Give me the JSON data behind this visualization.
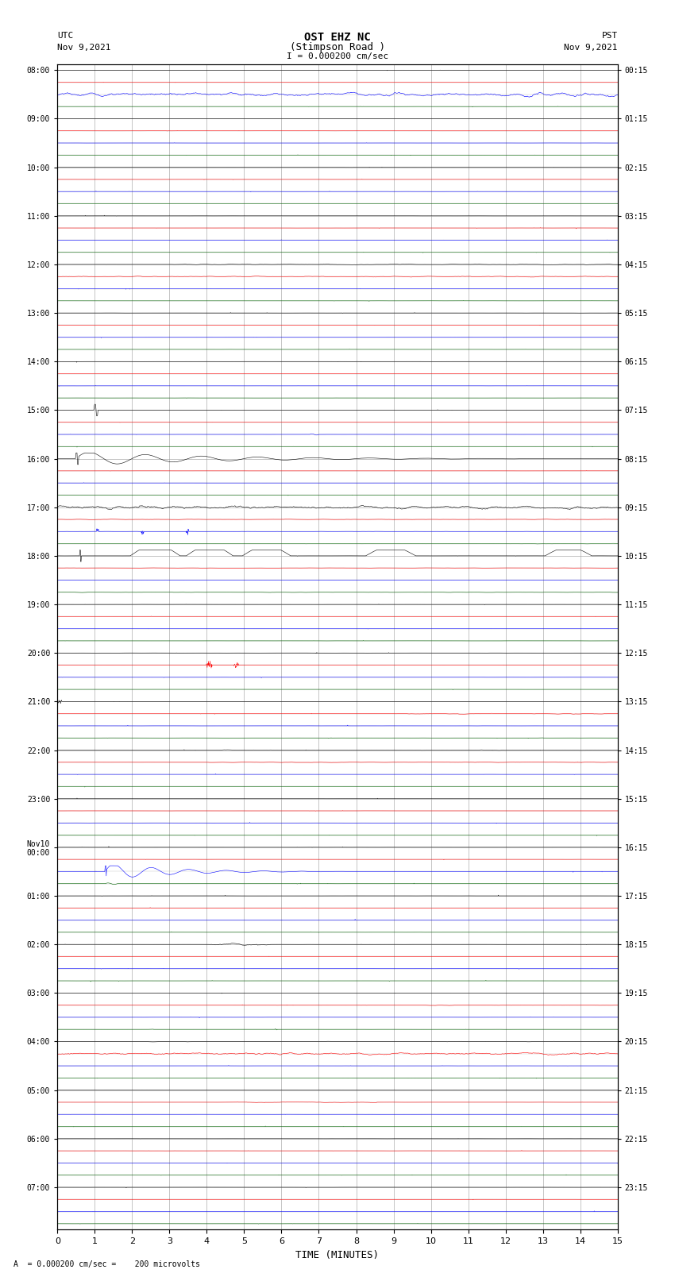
{
  "title_line1": "OST EHZ NC",
  "title_line2": "(Stimpson Road )",
  "scale_label": "I = 0.000200 cm/sec",
  "footer_label": "A  = 0.000200 cm/sec =    200 microvolts",
  "xlabel": "TIME (MINUTES)",
  "utc_times_labeled": [
    "08:00",
    "09:00",
    "10:00",
    "11:00",
    "12:00",
    "13:00",
    "14:00",
    "15:00",
    "16:00",
    "17:00",
    "18:00",
    "19:00",
    "20:00",
    "21:00",
    "22:00",
    "23:00",
    "Nov10\n00:00",
    "01:00",
    "02:00",
    "03:00",
    "04:00",
    "05:00",
    "06:00",
    "07:00"
  ],
  "pst_times_labeled": [
    "00:15",
    "01:15",
    "02:15",
    "03:15",
    "04:15",
    "05:15",
    "06:15",
    "07:15",
    "08:15",
    "09:15",
    "10:15",
    "11:15",
    "12:15",
    "13:15",
    "14:15",
    "15:15",
    "16:15",
    "17:15",
    "18:15",
    "19:15",
    "20:15",
    "21:15",
    "22:15",
    "23:15"
  ],
  "n_rows": 96,
  "n_hours": 24,
  "minutes": 15,
  "bg_color": "#ffffff",
  "grid_color": "#999999",
  "trace_colors_cycle": [
    "#000000",
    "#ff0000",
    "#0000ff",
    "#006400"
  ],
  "noise_level": 0.015,
  "figsize": [
    8.5,
    16.13
  ],
  "dpi": 100
}
